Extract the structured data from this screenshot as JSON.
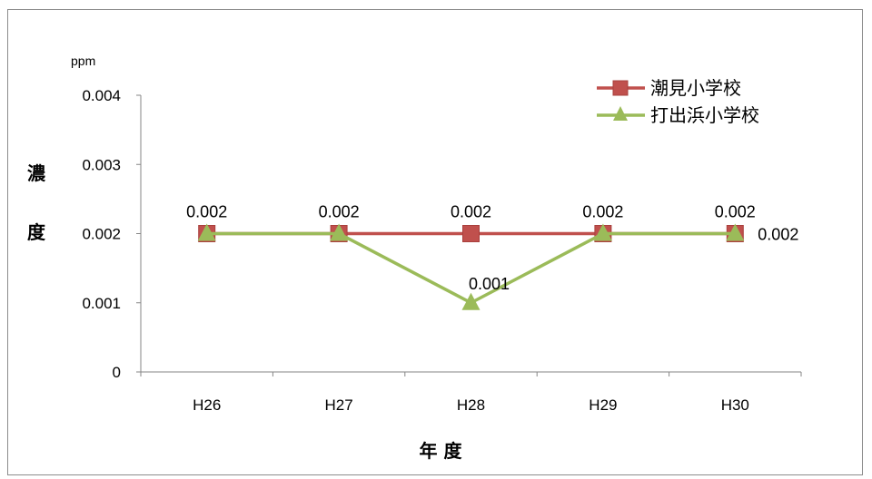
{
  "chart_data": {
    "type": "line",
    "unit_label": "ppm",
    "ylabel": "濃度",
    "xlabel": "年 度",
    "categories": [
      "H26",
      "H27",
      "H28",
      "H29",
      "H30"
    ],
    "y_ticks": [
      "0",
      "0.001",
      "0.002",
      "0.003",
      "0.004"
    ],
    "ylim": [
      0,
      0.004
    ],
    "series": [
      {
        "name": "潮見小学校",
        "values": [
          0.002,
          0.002,
          0.002,
          0.002,
          0.002
        ],
        "labels": [
          "0.002",
          "0.002",
          "0.002",
          "0.002",
          "0.002"
        ],
        "color": "#c0504d",
        "marker": "square"
      },
      {
        "name": "打出浜小学校",
        "values": [
          0.002,
          0.002,
          0.001,
          0.002,
          0.002
        ],
        "labels": [
          "",
          "",
          "0.001",
          "",
          "0.002"
        ],
        "color": "#9bbb59",
        "marker": "triangle"
      }
    ],
    "legend_position": "top-right",
    "grid": false
  }
}
